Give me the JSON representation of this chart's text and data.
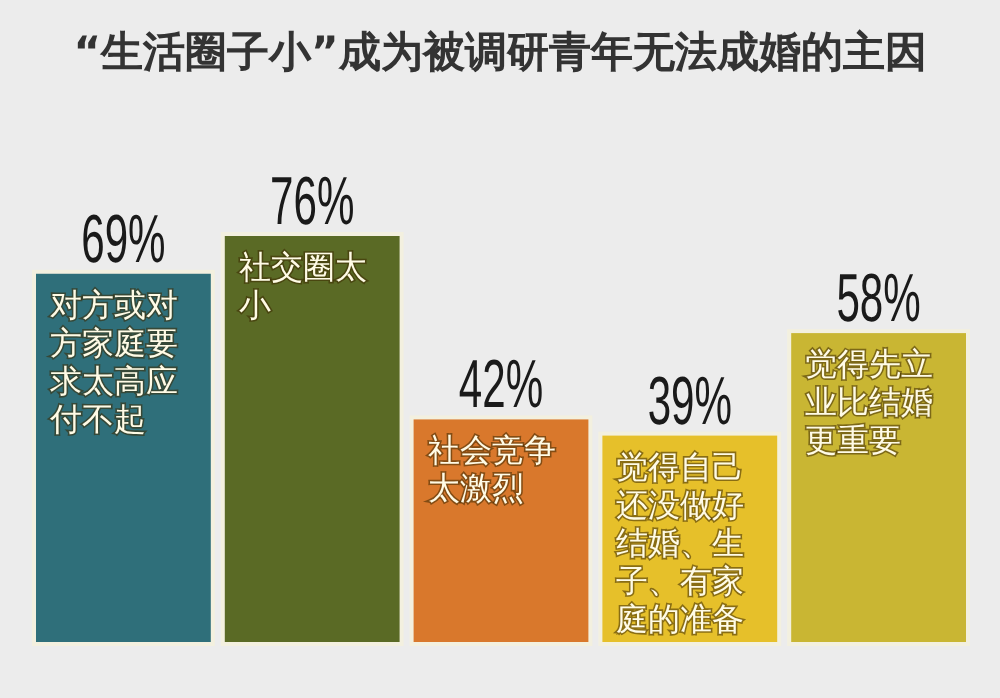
{
  "chart_data": {
    "type": "bar",
    "title": "“生活圈子小”成为被调研青年无法成婚的主因",
    "categories": [
      "对方或对方家庭要求太高应付不起",
      "社交圈太小",
      "社会竞争太激烈",
      "觉得自己还没做好结婚、生子、有家庭的准备",
      "觉得先立业比结婚更重要"
    ],
    "values": [
      69,
      76,
      42,
      39,
      58
    ],
    "colors": [
      "#2f6f7a",
      "#5a6a25",
      "#d9782c",
      "#e6c02a",
      "#c9b633"
    ],
    "value_labels": [
      "69%",
      "76%",
      "42%",
      "39%",
      "58%"
    ]
  }
}
